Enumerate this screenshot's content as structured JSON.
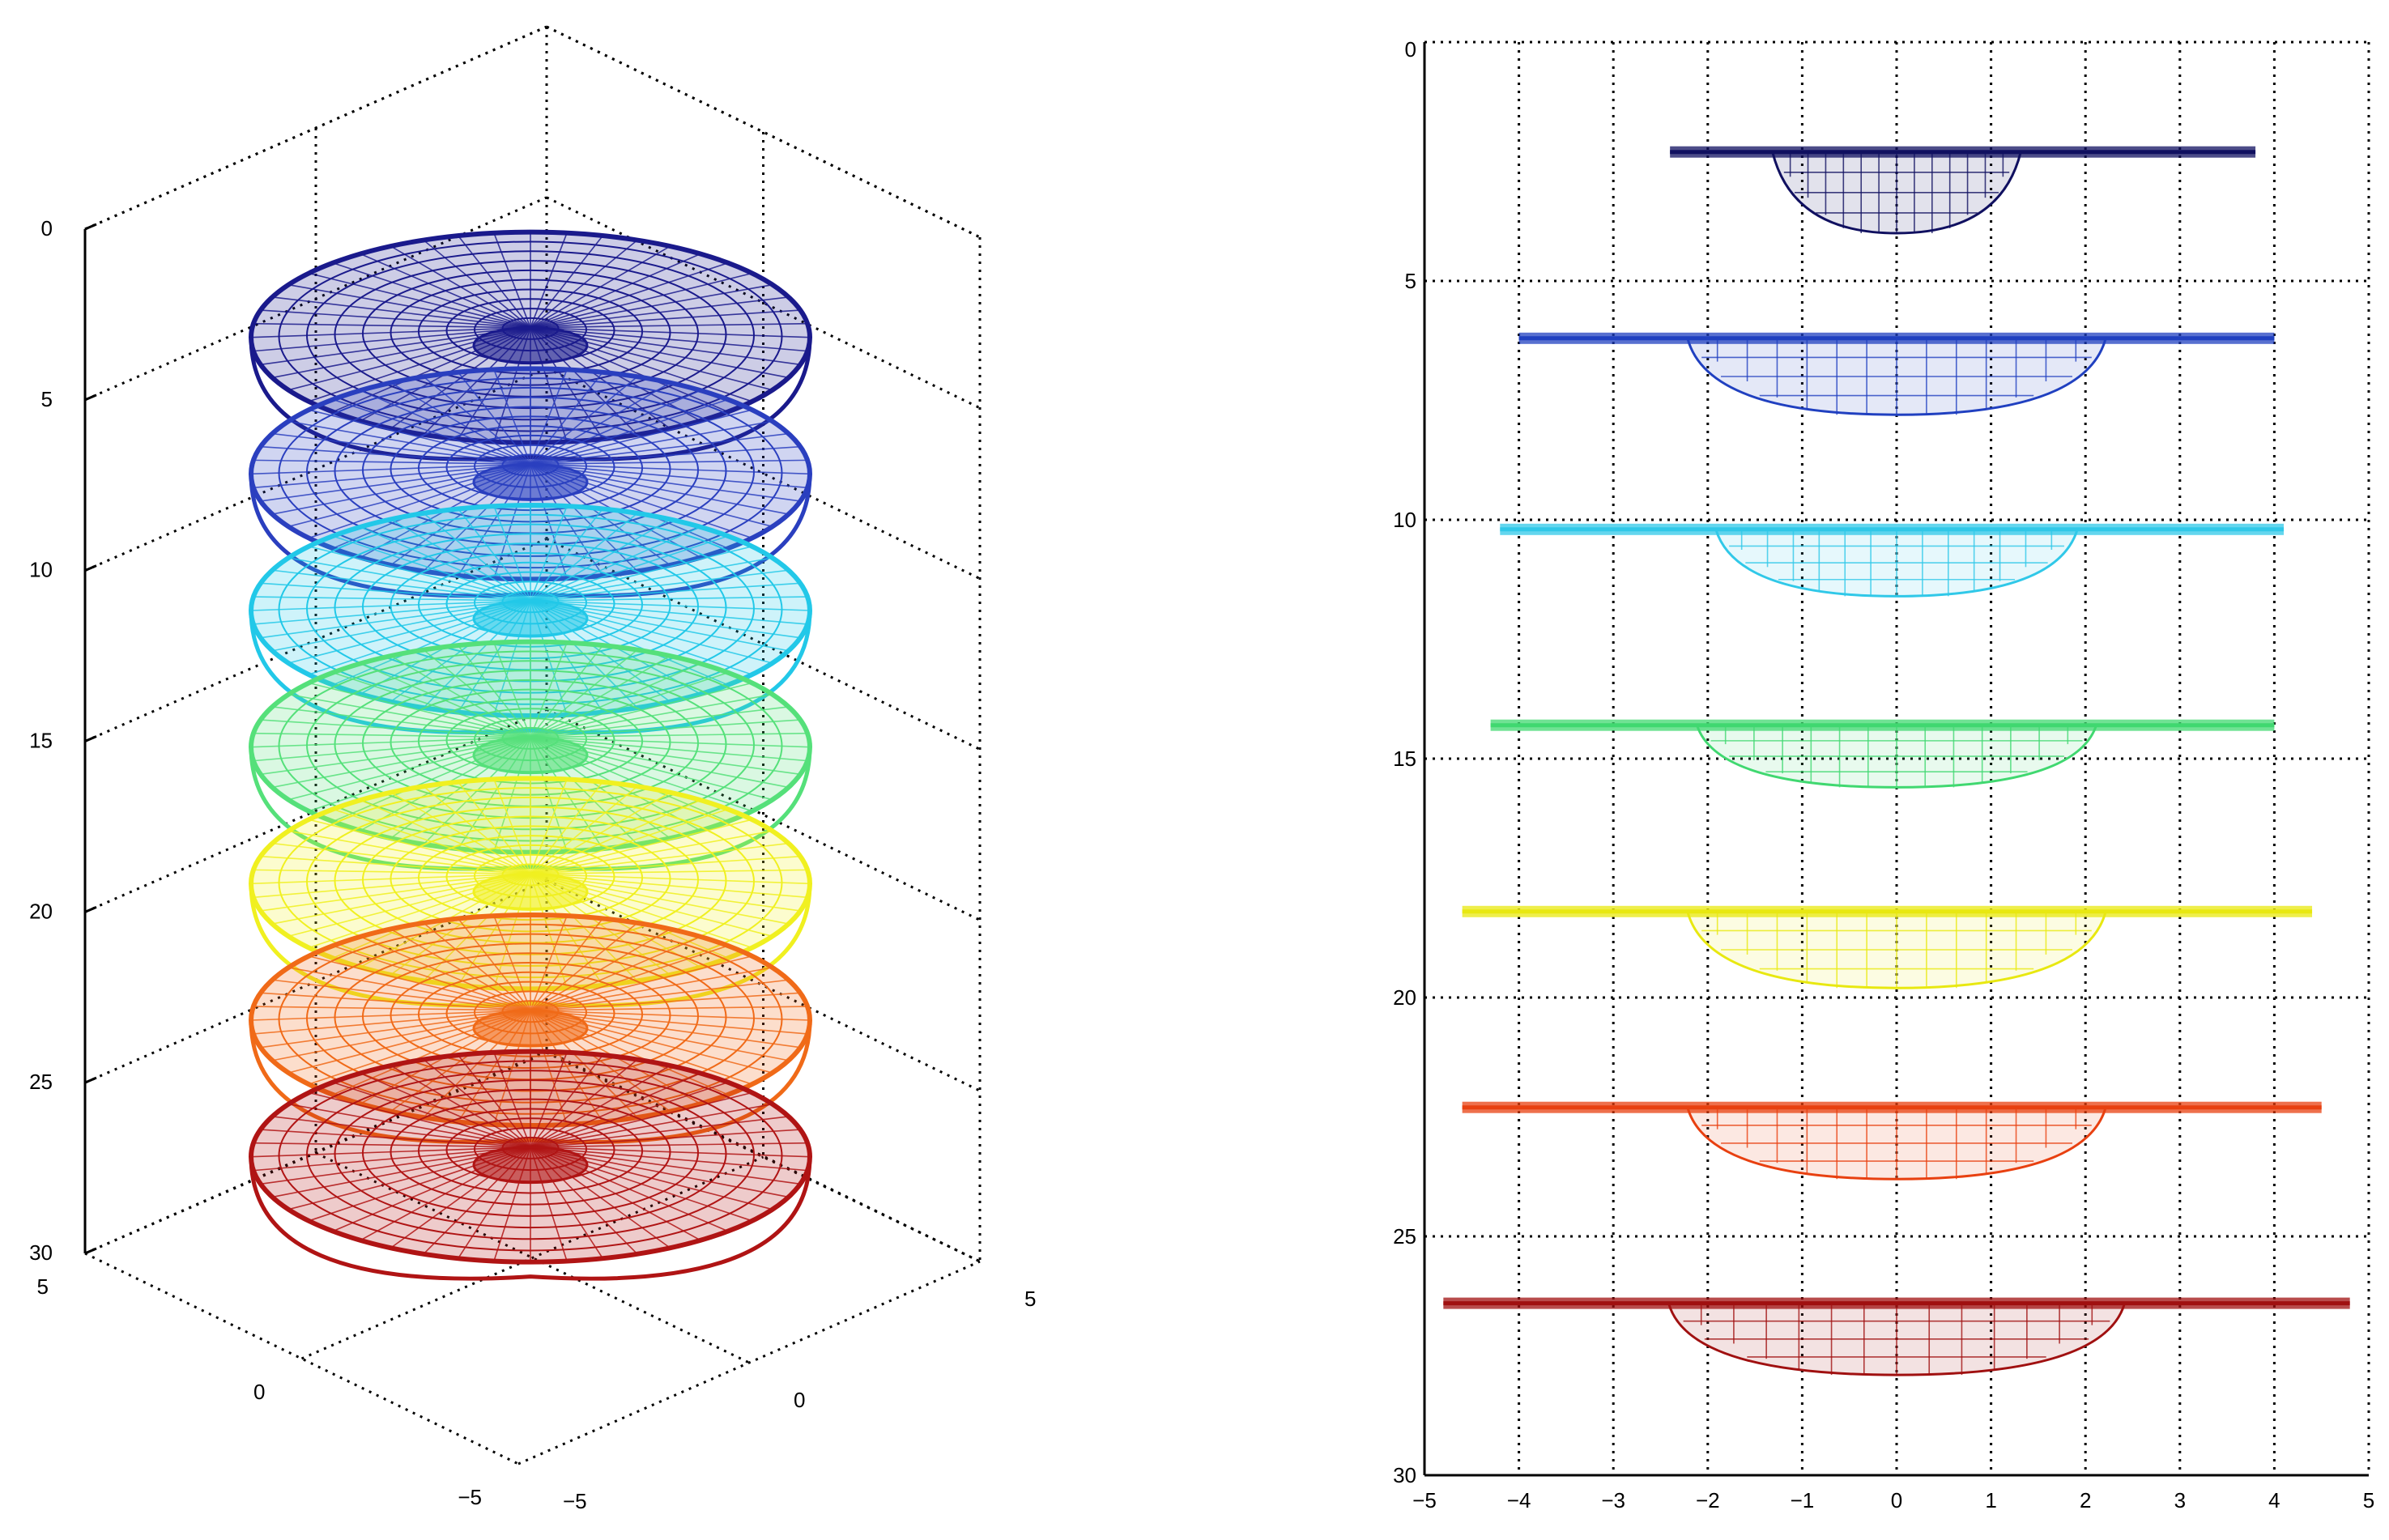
{
  "chart_data": [
    {
      "type": "surface3d",
      "title": "",
      "xlabel": "",
      "ylabel": "",
      "zlabel": "",
      "x_ticks": [
        "−5",
        "0",
        "5"
      ],
      "y_ticks": [
        "−5",
        "0",
        "5"
      ],
      "z_ticks": [
        "0",
        "5",
        "10",
        "15",
        "20",
        "25",
        "30"
      ],
      "zlim": [
        0,
        30
      ],
      "z_reversed": true,
      "grid": true,
      "layers": [
        {
          "depth": 4,
          "color": "#1a1a8c"
        },
        {
          "depth": 8,
          "color": "#2a3fbf"
        },
        {
          "depth": 12,
          "color": "#22c8e8"
        },
        {
          "depth": 16,
          "color": "#55e07a"
        },
        {
          "depth": 20,
          "color": "#f0f020"
        },
        {
          "depth": 24,
          "color": "#f06a18"
        },
        {
          "depth": 28,
          "color": "#b01414"
        }
      ]
    },
    {
      "type": "line",
      "title": "",
      "xlabel": "",
      "ylabel": "",
      "x_ticks": [
        "−5",
        "−4",
        "−3",
        "−2",
        "−1",
        "0",
        "1",
        "2",
        "3",
        "4",
        "5"
      ],
      "y_ticks": [
        "0",
        "5",
        "10",
        "15",
        "20",
        "25",
        "30"
      ],
      "xlim": [
        -5,
        5
      ],
      "ylim": [
        0,
        30
      ],
      "y_reversed": true,
      "grid": true,
      "series": [
        {
          "surface": 2.3,
          "xmin": -2.4,
          "xmax": 3.8,
          "bowl_depth": 4.0,
          "bowl_halfwidth": 1.1,
          "color": "#101060"
        },
        {
          "surface": 6.2,
          "xmin": -4.0,
          "xmax": 4.0,
          "bowl_depth": 7.8,
          "bowl_halfwidth": 2.0,
          "color": "#2040c0"
        },
        {
          "surface": 10.2,
          "xmin": -4.2,
          "xmax": 4.1,
          "bowl_depth": 11.6,
          "bowl_halfwidth": 1.7,
          "color": "#30c8e8"
        },
        {
          "surface": 14.3,
          "xmin": -4.3,
          "xmax": 4.0,
          "bowl_depth": 15.6,
          "bowl_halfwidth": 1.9,
          "color": "#40d870"
        },
        {
          "surface": 18.2,
          "xmin": -4.6,
          "xmax": 4.4,
          "bowl_depth": 19.8,
          "bowl_halfwidth": 2.0,
          "color": "#e8e810"
        },
        {
          "surface": 22.3,
          "xmin": -4.6,
          "xmax": 4.5,
          "bowl_depth": 23.8,
          "bowl_halfwidth": 2.0,
          "color": "#e84010"
        },
        {
          "surface": 26.4,
          "xmin": -4.8,
          "xmax": 4.8,
          "bowl_depth": 27.9,
          "bowl_halfwidth": 2.2,
          "color": "#a01010"
        }
      ]
    }
  ]
}
